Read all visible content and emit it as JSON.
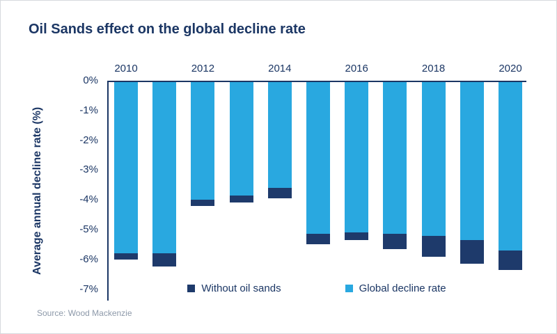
{
  "page": {
    "source_text": "Source: Wood Mackenzie"
  },
  "legend": {
    "items": [
      {
        "label": "Without oil sands",
        "color": "#1e3a6b"
      },
      {
        "label": "Global decline rate",
        "color": "#29a8e0"
      }
    ]
  },
  "chart_data": {
    "type": "bar",
    "stacked": true,
    "title": "Oil Sands effect on the global decline rate",
    "ylabel": "Average annual decline rate (%)",
    "xlabel": "",
    "ylim": [
      -7,
      0
    ],
    "yticks": [
      "0%",
      "-1%",
      "-2%",
      "-3%",
      "-4%",
      "-5%",
      "-6%",
      "-7%"
    ],
    "grid": false,
    "legend_position": "bottom",
    "categories": [
      "2010",
      "2011",
      "2012",
      "2013",
      "2014",
      "2015",
      "2016",
      "2017",
      "2018",
      "2019",
      "2020"
    ],
    "xtick_labels_shown": [
      "2010",
      "2012",
      "2014",
      "2016",
      "2018",
      "2020"
    ],
    "series": [
      {
        "name": "Global decline rate",
        "color": "#29a8e0",
        "values": [
          -5.8,
          -5.8,
          -4.0,
          -3.85,
          -3.6,
          -5.15,
          -5.1,
          -5.15,
          -5.2,
          -5.35,
          -5.7
        ]
      },
      {
        "name": "Without oil sands",
        "color": "#1e3a6b",
        "values": [
          -6.0,
          -6.25,
          -4.2,
          -4.1,
          -3.95,
          -5.5,
          -5.35,
          -5.65,
          -5.9,
          -6.15,
          -6.35
        ]
      }
    ],
    "colors": {
      "title": "#1b3664",
      "axis": "#1b3664",
      "source": "#8d99a9"
    }
  }
}
